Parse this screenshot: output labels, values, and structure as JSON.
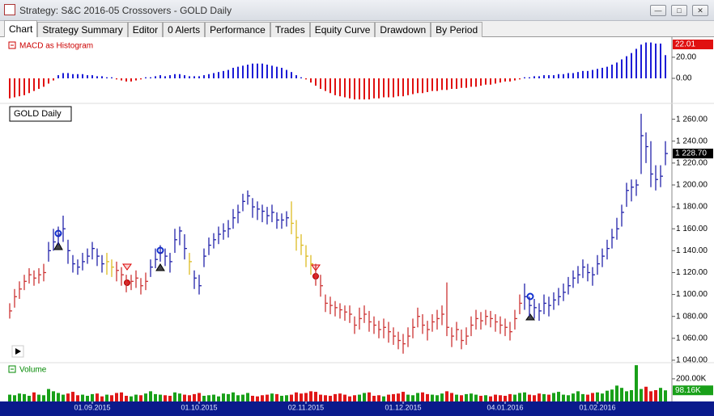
{
  "window": {
    "title": "Strategy: S&C 2016-05 Crossovers - GOLD Daily",
    "tabs": [
      "Chart",
      "Strategy Summary",
      "Editor",
      "0 Alerts",
      "Performance",
      "Trades",
      "Equity Curve",
      "Drawdown",
      "By Period"
    ]
  },
  "chart_data": [
    {
      "type": "bar",
      "title": "MACD as Histogram",
      "up_color": "#1c1cd6",
      "down_color": "#e01010",
      "ylim": [
        -23,
        36
      ],
      "yticks": [
        {
          "value": 0,
          "label": "0.00"
        },
        {
          "value": 20,
          "label": "20.00"
        }
      ],
      "last_label": "22.01",
      "values": [
        -19,
        -18,
        -17,
        -16,
        -14,
        -12,
        -10,
        -8,
        -5,
        -2,
        3,
        5,
        5,
        4,
        4,
        4,
        3,
        3,
        2,
        2,
        1,
        1,
        -1,
        -2,
        -3,
        -3,
        -2,
        -1,
        1,
        1,
        2,
        3,
        2,
        3,
        4,
        4,
        3,
        2,
        2,
        2,
        3,
        4,
        5,
        6,
        7,
        8,
        10,
        11,
        12,
        13,
        14,
        14,
        14,
        13,
        12,
        11,
        10,
        8,
        6,
        3,
        1,
        -1,
        -4,
        -7,
        -10,
        -12,
        -14,
        -16,
        -17,
        -18,
        -19,
        -20,
        -20,
        -20,
        -20,
        -19,
        -19,
        -18,
        -18,
        -18,
        -17,
        -17,
        -16,
        -15,
        -14,
        -14,
        -13,
        -12,
        -12,
        -11,
        -11,
        -10,
        -10,
        -9,
        -9,
        -8,
        -8,
        -7,
        -6,
        -6,
        -5,
        -4,
        -3,
        -3,
        -2,
        -1,
        1,
        1,
        2,
        2,
        3,
        3,
        3,
        4,
        4,
        5,
        5,
        6,
        7,
        7,
        8,
        9,
        10,
        11,
        13,
        15,
        18,
        21,
        24,
        28,
        32,
        34,
        34,
        33,
        33,
        22.01
      ]
    },
    {
      "type": "hlc",
      "title": "GOLD Daily",
      "ylim": [
        1037,
        1273
      ],
      "yticks": [
        {
          "value": 1040,
          "label": "1 040.00"
        },
        {
          "value": 1060,
          "label": "1 060.00"
        },
        {
          "value": 1080,
          "label": "1 080.00"
        },
        {
          "value": 1100,
          "label": "1 100.00"
        },
        {
          "value": 1120,
          "label": "1 120.00"
        },
        {
          "value": 1140,
          "label": "1 140.00"
        },
        {
          "value": 1160,
          "label": "1 160.00"
        },
        {
          "value": 1180,
          "label": "1 180.00"
        },
        {
          "value": 1200,
          "label": "1 200.00"
        },
        {
          "value": 1220,
          "label": "1 220.00"
        },
        {
          "value": 1240,
          "label": "1 240.00"
        },
        {
          "value": 1260,
          "label": "1 260.00"
        }
      ],
      "last_label": "1 228.70",
      "high": [
        1092,
        1105,
        1112,
        1118,
        1124,
        1122,
        1124,
        1128,
        1148,
        1160,
        1162,
        1172,
        1150,
        1136,
        1132,
        1138,
        1142,
        1148,
        1142,
        1136,
        1138,
        1132,
        1130,
        1125,
        1118,
        1118,
        1122,
        1115,
        1120,
        1132,
        1142,
        1145,
        1142,
        1138,
        1160,
        1162,
        1155,
        1138,
        1122,
        1118,
        1142,
        1152,
        1156,
        1162,
        1165,
        1168,
        1178,
        1182,
        1192,
        1195,
        1188,
        1185,
        1182,
        1180,
        1182,
        1175,
        1174,
        1176,
        1185,
        1168,
        1155,
        1145,
        1136,
        1128,
        1118,
        1100,
        1098,
        1094,
        1092,
        1090,
        1090,
        1080,
        1088,
        1090,
        1085,
        1080,
        1076,
        1078,
        1075,
        1070,
        1066,
        1064,
        1070,
        1078,
        1088,
        1082,
        1076,
        1082,
        1086,
        1090,
        1111,
        1070,
        1075,
        1068,
        1070,
        1080,
        1086,
        1084,
        1086,
        1085,
        1082,
        1080,
        1078,
        1075,
        1086,
        1100,
        1110,
        1098,
        1096,
        1092,
        1100,
        1098,
        1102,
        1106,
        1110,
        1116,
        1122,
        1126,
        1132,
        1128,
        1125,
        1136,
        1142,
        1150,
        1160,
        1170,
        1182,
        1202,
        1205,
        1205,
        1265,
        1248,
        1240,
        1218,
        1218,
        1240
      ],
      "low": [
        1078,
        1088,
        1096,
        1104,
        1110,
        1108,
        1110,
        1112,
        1130,
        1140,
        1145,
        1148,
        1128,
        1120,
        1118,
        1122,
        1128,
        1132,
        1126,
        1120,
        1118,
        1116,
        1112,
        1108,
        1102,
        1104,
        1106,
        1100,
        1104,
        1116,
        1124,
        1130,
        1126,
        1120,
        1138,
        1145,
        1132,
        1118,
        1105,
        1100,
        1125,
        1136,
        1142,
        1146,
        1150,
        1152,
        1160,
        1165,
        1176,
        1182,
        1170,
        1168,
        1166,
        1164,
        1166,
        1160,
        1160,
        1162,
        1155,
        1140,
        1136,
        1125,
        1118,
        1108,
        1098,
        1084,
        1082,
        1080,
        1078,
        1076,
        1074,
        1064,
        1068,
        1074,
        1066,
        1064,
        1060,
        1060,
        1056,
        1054,
        1050,
        1046,
        1052,
        1060,
        1070,
        1064,
        1058,
        1066,
        1068,
        1072,
        1062,
        1052,
        1058,
        1050,
        1054,
        1062,
        1068,
        1068,
        1072,
        1070,
        1066,
        1064,
        1062,
        1058,
        1068,
        1082,
        1086,
        1080,
        1078,
        1076,
        1082,
        1080,
        1086,
        1090,
        1094,
        1100,
        1106,
        1110,
        1115,
        1112,
        1108,
        1118,
        1125,
        1132,
        1142,
        1150,
        1162,
        1180,
        1185,
        1190,
        1210,
        1220,
        1198,
        1195,
        1198,
        1218
      ],
      "close": [
        1085,
        1098,
        1105,
        1112,
        1118,
        1115,
        1118,
        1120,
        1140,
        1148,
        1155,
        1160,
        1140,
        1128,
        1125,
        1130,
        1135,
        1142,
        1135,
        1128,
        1130,
        1125,
        1122,
        1118,
        1110,
        1112,
        1115,
        1108,
        1112,
        1125,
        1132,
        1138,
        1135,
        1130,
        1150,
        1158,
        1142,
        1130,
        1115,
        1108,
        1135,
        1145,
        1150,
        1155,
        1158,
        1160,
        1170,
        1175,
        1185,
        1190,
        1180,
        1178,
        1176,
        1172,
        1175,
        1168,
        1168,
        1170,
        1165,
        1152,
        1145,
        1135,
        1128,
        1118,
        1108,
        1092,
        1090,
        1088,
        1086,
        1084,
        1082,
        1072,
        1078,
        1082,
        1075,
        1072,
        1068,
        1070,
        1066,
        1062,
        1058,
        1055,
        1062,
        1070,
        1080,
        1072,
        1068,
        1075,
        1078,
        1082,
        1070,
        1062,
        1068,
        1058,
        1062,
        1072,
        1078,
        1076,
        1080,
        1078,
        1075,
        1072,
        1070,
        1066,
        1078,
        1092,
        1098,
        1090,
        1088,
        1085,
        1092,
        1090,
        1095,
        1098,
        1102,
        1108,
        1115,
        1118,
        1125,
        1120,
        1118,
        1128,
        1135,
        1142,
        1152,
        1160,
        1175,
        1195,
        1198,
        1200,
        1245,
        1235,
        1210,
        1205,
        1208,
        1228.7
      ],
      "colors": [
        "#c33",
        "#c33",
        "#c33",
        "#c33",
        "#c33",
        "#c33",
        "#c33",
        "#c33",
        "#22a",
        "#22a",
        "#22a",
        "#22a",
        "#22a",
        "#22a",
        "#22a",
        "#22a",
        "#22a",
        "#22a",
        "#22a",
        "#22a",
        "#db2",
        "#db2",
        "#c33",
        "#c33",
        "#c33",
        "#c33",
        "#c33",
        "#c33",
        "#c33",
        "#22a",
        "#22a",
        "#22a",
        "#22a",
        "#22a",
        "#22a",
        "#22a",
        "#22a",
        "#db2",
        "#22a",
        "#22a",
        "#22a",
        "#22a",
        "#22a",
        "#22a",
        "#22a",
        "#22a",
        "#22a",
        "#22a",
        "#22a",
        "#22a",
        "#22a",
        "#22a",
        "#22a",
        "#22a",
        "#22a",
        "#22a",
        "#22a",
        "#22a",
        "#db2",
        "#db2",
        "#db2",
        "#db2",
        "#db2",
        "#c33",
        "#c33",
        "#c33",
        "#c33",
        "#c33",
        "#c33",
        "#c33",
        "#c33",
        "#c33",
        "#c33",
        "#c33",
        "#c33",
        "#c33",
        "#c33",
        "#c33",
        "#c33",
        "#c33",
        "#c33",
        "#c33",
        "#c33",
        "#c33",
        "#c33",
        "#c33",
        "#c33",
        "#c33",
        "#c33",
        "#c33",
        "#c33",
        "#c33",
        "#c33",
        "#c33",
        "#c33",
        "#c33",
        "#c33",
        "#c33",
        "#c33",
        "#c33",
        "#c33",
        "#c33",
        "#c33",
        "#c33",
        "#c33",
        "#c33",
        "#22a",
        "#22a",
        "#22a",
        "#22a",
        "#22a",
        "#22a",
        "#22a",
        "#22a",
        "#22a",
        "#22a",
        "#22a",
        "#22a",
        "#22a",
        "#22a",
        "#22a",
        "#22a",
        "#22a",
        "#22a",
        "#22a",
        "#22a",
        "#22a",
        "#22a",
        "#22a",
        "#22a",
        "#22a",
        "#22a",
        "#22a",
        "#22a",
        "#22a",
        "#22a"
      ]
    },
    {
      "type": "bar",
      "title": "Volume",
      "up_color": "#19a019",
      "down_color": "#e01818",
      "ylim": [
        0,
        335
      ],
      "yticks": [
        {
          "value": 200,
          "label": "200.00K"
        }
      ],
      "last_label": "98.16K",
      "categories": [
        null,
        null,
        null,
        null,
        null,
        null,
        null,
        null,
        null,
        null,
        null,
        null,
        null,
        null,
        null,
        null,
        null,
        "01.09.2015",
        null,
        null,
        null,
        null,
        null,
        null,
        null,
        null,
        null,
        null,
        null,
        null,
        null,
        null,
        null,
        null,
        null,
        null,
        null,
        null,
        null,
        "01.10.2015",
        null,
        null,
        null,
        null,
        null,
        null,
        null,
        null,
        null,
        null,
        null,
        null,
        null,
        null,
        null,
        null,
        null,
        null,
        null,
        null,
        null,
        "02.11.2015",
        null,
        null,
        null,
        null,
        null,
        null,
        null,
        null,
        null,
        null,
        null,
        null,
        null,
        null,
        null,
        null,
        null,
        null,
        null,
        "01.12.2015",
        null,
        null,
        null,
        null,
        null,
        null,
        null,
        null,
        null,
        null,
        null,
        null,
        null,
        null,
        null,
        null,
        null,
        null,
        null,
        null,
        "04.01.2016",
        null,
        null,
        null,
        null,
        null,
        null,
        null,
        null,
        null,
        null,
        null,
        null,
        null,
        null,
        null,
        null,
        null,
        null,
        "01.02.2016",
        null,
        null,
        null,
        null,
        null,
        null,
        null,
        null,
        null,
        null,
        null,
        null,
        null,
        null
      ],
      "values": [
        60,
        55,
        70,
        65,
        50,
        80,
        60,
        55,
        110,
        90,
        75,
        60,
        70,
        85,
        55,
        60,
        50,
        65,
        70,
        45,
        60,
        55,
        75,
        80,
        50,
        45,
        60,
        55,
        70,
        90,
        65,
        60,
        55,
        50,
        80,
        70,
        60,
        55,
        65,
        75,
        50,
        55,
        60,
        45,
        70,
        65,
        80,
        55,
        60,
        75,
        50,
        45,
        55,
        60,
        70,
        65,
        50,
        55,
        60,
        80,
        70,
        75,
        90,
        85,
        60,
        55,
        50,
        65,
        70,
        60,
        45,
        55,
        60,
        75,
        80,
        50,
        55,
        45,
        60,
        65,
        70,
        85,
        60,
        55,
        75,
        80,
        65,
        60,
        55,
        70,
        90,
        75,
        60,
        55,
        65,
        70,
        60,
        50,
        55,
        45,
        60,
        55,
        50,
        65,
        60,
        75,
        80,
        60,
        55,
        70,
        65,
        60,
        75,
        85,
        60,
        55,
        70,
        90,
        65,
        60,
        75,
        80,
        70,
        95,
        105,
        140,
        120,
        90,
        100,
        320,
        110,
        130,
        90,
        100,
        120,
        98.16
      ]
    }
  ]
}
